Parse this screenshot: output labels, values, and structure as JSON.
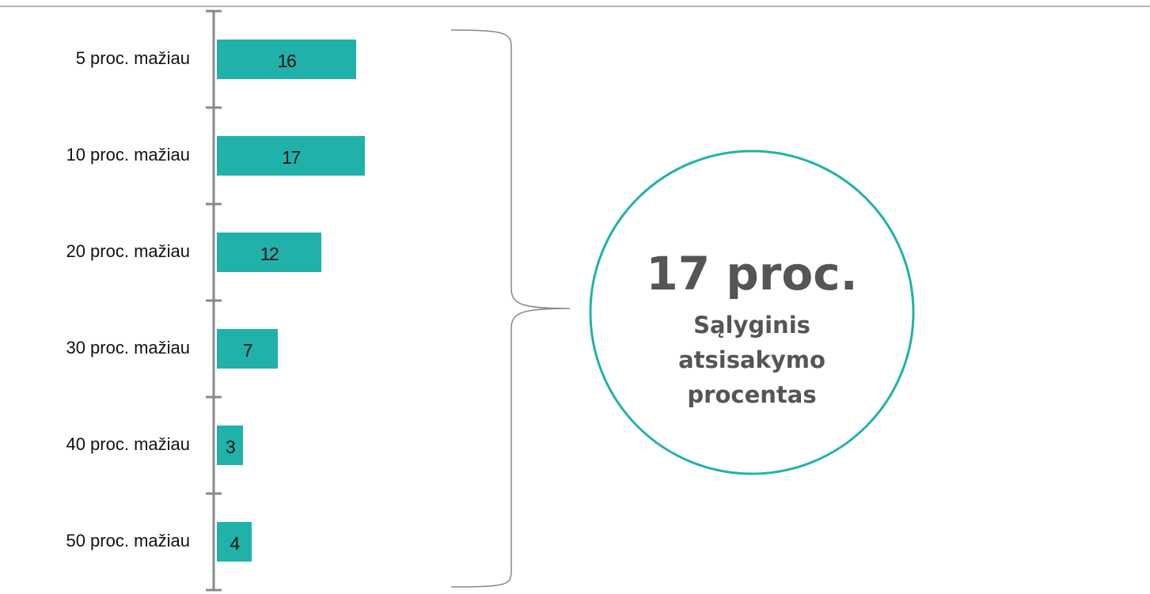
{
  "chart_data": {
    "type": "bar",
    "orientation": "horizontal",
    "categories": [
      "5 proc. mažiau",
      "10 proc. mažiau",
      "20 proc. mažiau",
      "30 proc. mažiau",
      "40 proc. mažiau",
      "50 proc. mažiau"
    ],
    "values": [
      16,
      17,
      12,
      7,
      3,
      4
    ],
    "color": "#20b2aa",
    "annotation": {
      "title": "17 proc.",
      "text": "Sąlyginis atsisakymo procentas",
      "color": "#20b2aa"
    }
  }
}
